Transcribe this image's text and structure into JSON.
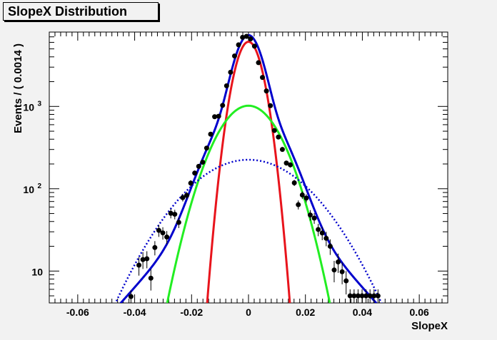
{
  "chart_data": {
    "type": "scatter",
    "title": "SlopeX Distribution",
    "xlabel": "SlopeX",
    "ylabel": "Events / ( 0.0014 )",
    "xlim": [
      -0.07,
      0.07
    ],
    "ylim": [
      4.1,
      8000
    ],
    "log_y": true,
    "grid": false,
    "x_ticks": [
      -0.06,
      -0.04,
      -0.02,
      0,
      0.02,
      0.04,
      0.06
    ],
    "x_tick_labels": [
      "-0.06",
      "-0.04",
      "-0.02",
      "0",
      "0.02",
      "0.04",
      "0.06"
    ],
    "y_ticks": [
      {
        "value": 10,
        "base": "10",
        "exp": ""
      },
      {
        "value": 100,
        "base": "10",
        "exp": "2"
      },
      {
        "value": 1000,
        "base": "10",
        "exp": "3"
      }
    ],
    "data_points": {
      "x": [
        -0.0413,
        -0.0385,
        -0.0371,
        -0.0357,
        -0.0343,
        -0.0329,
        -0.0315,
        -0.0301,
        -0.0287,
        -0.0273,
        -0.0259,
        -0.0245,
        -0.0231,
        -0.0217,
        -0.0203,
        -0.0189,
        -0.0175,
        -0.0161,
        -0.0147,
        -0.0133,
        -0.0119,
        -0.0105,
        -0.0091,
        -0.0077,
        -0.0063,
        -0.0049,
        -0.0035,
        -0.0021,
        -0.0007,
        0.0007,
        0.0021,
        0.0035,
        0.0049,
        0.0063,
        0.0077,
        0.0091,
        0.0105,
        0.0119,
        0.0133,
        0.0147,
        0.0161,
        0.0175,
        0.0189,
        0.0203,
        0.0217,
        0.0231,
        0.0245,
        0.0259,
        0.0273,
        0.0287,
        0.0301,
        0.0315,
        0.0329,
        0.0343,
        0.0357,
        0.0371,
        0.0385,
        0.0399,
        0.0413,
        0.0427,
        0.0441,
        0.0455
      ],
      "y": [
        4.9,
        11.8,
        13.8,
        14.1,
        8.2,
        19.3,
        31.2,
        29.1,
        25.9,
        50.3,
        49.0,
        39.0,
        78.0,
        83.0,
        117.0,
        155.0,
        187.0,
        210.0,
        312.0,
        460.0,
        750.0,
        760.0,
        1030.0,
        1780.0,
        2600.0,
        4100.0,
        5600.0,
        6900.0,
        7100.0,
        6600.0,
        5400.0,
        3400.0,
        2250.0,
        1540.0,
        1020.0,
        510.0,
        425.0,
        300.0,
        205.0,
        195.0,
        118.0,
        64.0,
        84.0,
        77.0,
        48.0,
        44.0,
        32.0,
        29.0,
        25.0,
        20.0,
        10.3,
        12.9,
        9.8,
        7.6,
        5.0,
        5.0,
        5.0,
        5.0,
        5.0,
        5.0,
        5.0,
        5.0
      ],
      "y_err": [
        0.9,
        3.0,
        3.2,
        3.3,
        2.4,
        3.8,
        5.2,
        5.0,
        4.7,
        6.6,
        6.5,
        5.7,
        8.0,
        8.5,
        10.0,
        11.0,
        12.5,
        14.0,
        17.0,
        20.0,
        25.0,
        25.0,
        30.0,
        40.0,
        50.0,
        60.0,
        70.0,
        80.0,
        80.0,
        80.0,
        70.0,
        55.0,
        45.0,
        38.0,
        30.0,
        22.0,
        20.0,
        17.0,
        14.0,
        14.0,
        10.0,
        8.0,
        9.0,
        8.8,
        7.0,
        6.6,
        5.5,
        5.3,
        5.0,
        4.3,
        3.0,
        3.4,
        2.9,
        2.4,
        1.0,
        1.0,
        1.0,
        1.0,
        1.0,
        1.0,
        1.0,
        1.0
      ]
    },
    "series": [
      {
        "color": "#0000cc",
        "style": "solid",
        "kind": "total-fit",
        "amplitude": 7500
      },
      {
        "color": "#e8141c",
        "style": "solid",
        "kind": "narrow-gaussian",
        "amplitude": 6100,
        "mean": 0.0,
        "sigma": 0.0038
      },
      {
        "color": "#22ee22",
        "style": "solid",
        "kind": "medium-gaussian",
        "amplitude": 1020,
        "mean": 0.0,
        "sigma": 0.0086
      },
      {
        "color": "#0000cc",
        "style": "dotted",
        "kind": "wide-component",
        "amplitude": 225,
        "mean": 0.0,
        "sigma": 0.0165
      }
    ]
  }
}
